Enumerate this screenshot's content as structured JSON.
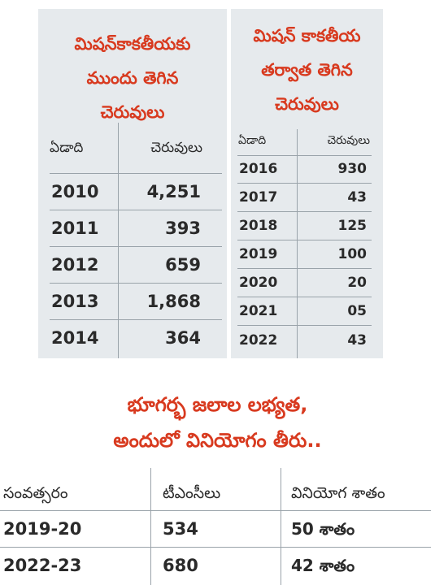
{
  "left_table": {
    "title_lines": [
      "మిషన్‌కాకతీయకు",
      "ముందు తెగిన",
      "చెరువులు"
    ],
    "header": {
      "year": "ఏడాది",
      "count": "చెరువులు"
    },
    "rows": [
      {
        "year": "2010",
        "count": "4,251"
      },
      {
        "year": "2011",
        "count": "393"
      },
      {
        "year": "2012",
        "count": "659"
      },
      {
        "year": "2013",
        "count": "1,868"
      },
      {
        "year": "2014",
        "count": "364"
      }
    ]
  },
  "right_table": {
    "title_lines": [
      "మిషన్ కాకతీయ",
      "తర్వాత తెగిన",
      "చెరువులు"
    ],
    "header": {
      "year": "ఏడాది",
      "count": "చెరువులు"
    },
    "rows": [
      {
        "year": "2016",
        "count": "930"
      },
      {
        "year": "2017",
        "count": "43"
      },
      {
        "year": "2018",
        "count": "125"
      },
      {
        "year": "2019",
        "count": "100"
      },
      {
        "year": "2020",
        "count": "20"
      },
      {
        "year": "2021",
        "count": "05"
      },
      {
        "year": "2022",
        "count": "43"
      }
    ]
  },
  "groundwater": {
    "title_lines": [
      "భూగర్భ జలాల లభ్యత,",
      "అందులో వినియోగం తీరు.."
    ],
    "header": {
      "year": "సంవత్సరం",
      "tmc": "టీఎంసీలు",
      "usage": "వినియోగ శాతం"
    },
    "rows": [
      {
        "year": "2019-20",
        "tmc": "534",
        "usage": "50 శాతం"
      },
      {
        "year": "2022-23",
        "tmc": "680",
        "usage": "42 శాతం"
      }
    ]
  },
  "colors": {
    "accent": "#d83a1f",
    "panel": "#e6eaed",
    "rule": "#9aa3aa"
  }
}
